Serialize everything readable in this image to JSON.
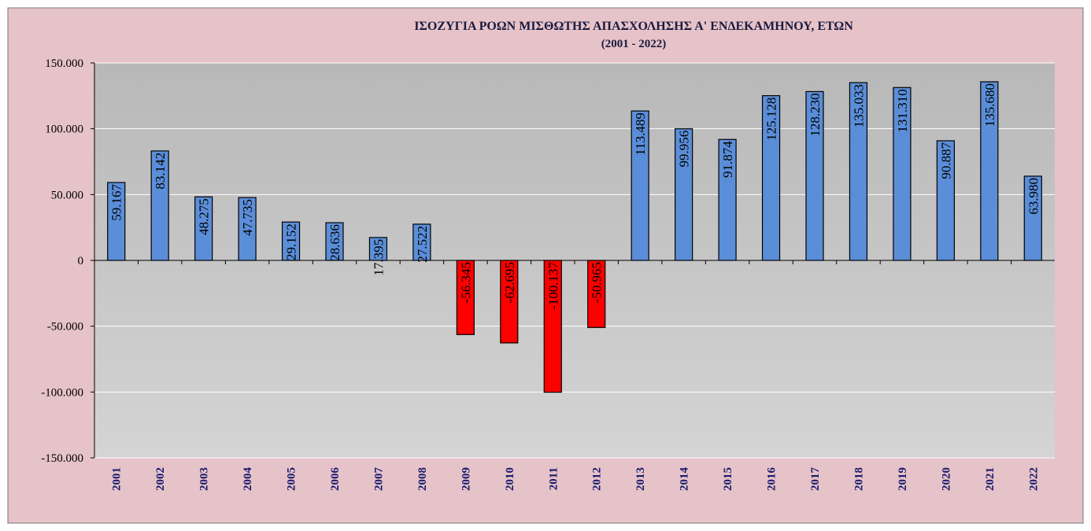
{
  "chart_data": {
    "type": "bar",
    "title": "ΙΣΟΖΥΓΙΑ ΡΟΩΝ ΜΙΣΘΩΤΗΣ ΑΠΑΣΧΟΛΗΣΗΣ Α' ΕΝΔΕΚΑΜΗΝΟΥ, ΕΤΩΝ",
    "subtitle": "(2001 - 2022)",
    "categories": [
      "2001",
      "2002",
      "2003",
      "2004",
      "2005",
      "2006",
      "2007",
      "2008",
      "2009",
      "2010",
      "2011",
      "2012",
      "2013",
      "2014",
      "2015",
      "2016",
      "2017",
      "2018",
      "2019",
      "2020",
      "2021",
      "2022"
    ],
    "values": [
      59167,
      83142,
      48275,
      47735,
      29152,
      28636,
      17395,
      27522,
      -56345,
      -62695,
      -100137,
      -50965,
      113489,
      99956,
      91874,
      125128,
      128230,
      135033,
      131310,
      90887,
      135680,
      63980
    ],
    "value_labels": [
      "59.167",
      "83.142",
      "48.275",
      "47.735",
      "29.152",
      "28.636",
      "17.395",
      "27.522",
      "-56.345",
      "-62.695",
      "-100.137",
      "-50.965",
      "113.489",
      "99.956",
      "91.874",
      "125.128",
      "128.230",
      "135.033",
      "131.310",
      "90.887",
      "135.680",
      "63.980"
    ],
    "color": "#5b8ed8",
    "negative_color": "#ff0000",
    "ylim": [
      -150000,
      150000
    ],
    "yticks": [
      {
        "value": -150000,
        "label": "-150.000"
      },
      {
        "value": -100000,
        "label": "-100.000"
      },
      {
        "value": -50000,
        "label": "-50.000"
      },
      0,
      {
        "value": 50000,
        "label": "50.000"
      },
      {
        "value": 100000,
        "label": "100.000"
      },
      {
        "value": 150000,
        "label": "150.000"
      }
    ],
    "grid": true
  }
}
